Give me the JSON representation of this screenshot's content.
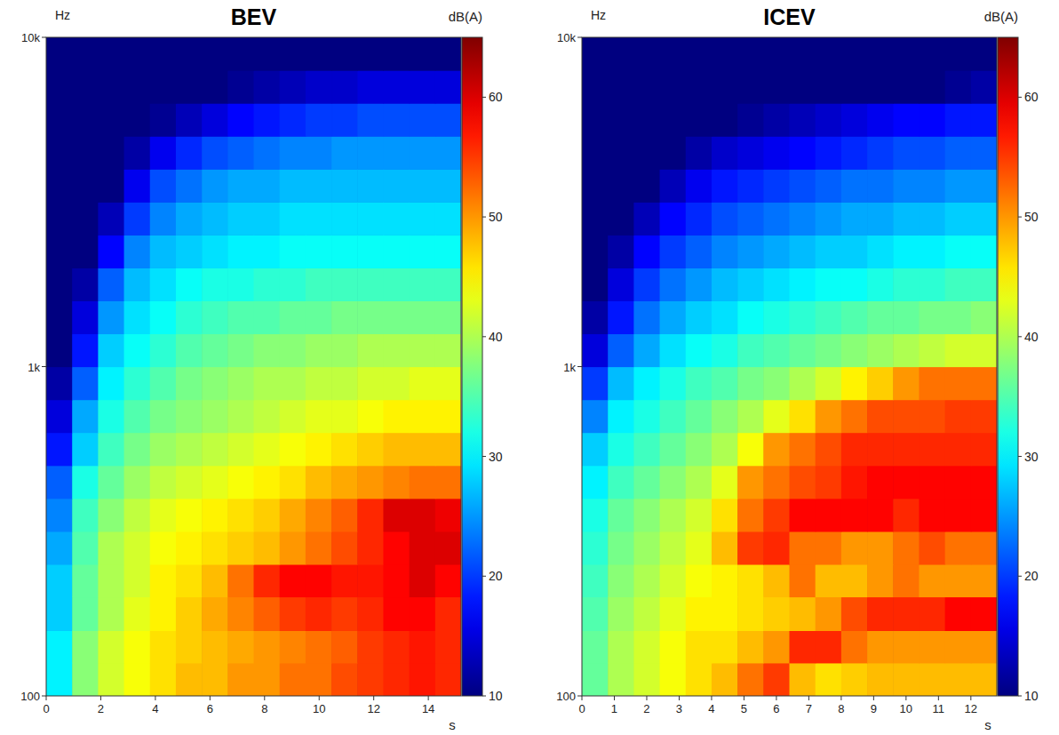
{
  "chart_data": [
    {
      "type": "heatmap",
      "title": "BEV",
      "x_label": "s",
      "y_label": "Hz",
      "colorbar_label": "dB(A)",
      "log": "y",
      "xlim": [
        0,
        15.2
      ],
      "xticks": [
        0,
        2,
        4,
        6,
        8,
        10,
        12,
        14
      ],
      "ylim": [
        100,
        10000
      ],
      "yticks": [
        100,
        {
          "value": 1000,
          "label": "1k"
        },
        {
          "value": 10000,
          "label": "10k"
        }
      ],
      "color_range": [
        10,
        65
      ],
      "color_ticks": [
        10,
        20,
        30,
        40,
        50,
        60
      ],
      "x_bins": [
        0,
        0.95,
        1.9,
        2.85,
        3.8,
        4.75,
        5.7,
        6.65,
        7.6,
        8.55,
        9.5,
        10.45,
        11.4,
        12.35,
        13.3,
        14.25,
        15.2
      ],
      "y_bins": [
        100,
        126,
        158,
        200,
        251,
        316,
        398,
        501,
        631,
        794,
        1000,
        1259,
        1585,
        1995,
        2512,
        3162,
        3981,
        5012,
        6310,
        7943,
        10000
      ],
      "cells": [
        [
          30,
          38,
          42,
          44,
          46,
          48,
          48,
          50,
          50,
          52,
          52,
          54,
          55,
          56,
          57,
          56
        ],
        [
          30,
          38,
          42,
          44,
          46,
          47,
          48,
          49,
          50,
          51,
          52,
          53,
          55,
          56,
          57,
          56
        ],
        [
          28,
          36,
          40,
          43,
          45,
          47,
          49,
          51,
          53,
          55,
          56,
          55,
          56,
          58,
          58,
          56
        ],
        [
          28,
          36,
          40,
          42,
          45,
          46,
          48,
          52,
          56,
          58,
          58,
          57,
          57,
          58,
          60,
          58
        ],
        [
          26,
          35,
          40,
          42,
          44,
          45,
          46,
          47,
          48,
          50,
          52,
          54,
          56,
          58,
          60,
          60
        ],
        [
          24,
          34,
          38,
          41,
          43,
          44,
          45,
          46,
          47,
          49,
          51,
          53,
          56,
          60,
          60,
          59
        ],
        [
          22,
          32,
          36,
          39,
          41,
          42,
          43,
          44,
          45,
          46,
          48,
          49,
          50,
          51,
          52,
          52
        ],
        [
          18,
          28,
          34,
          37,
          39,
          40,
          41,
          42,
          43,
          44,
          45,
          46,
          47,
          48,
          48,
          48
        ],
        [
          15,
          26,
          32,
          35,
          37,
          38,
          39,
          40,
          41,
          42,
          43,
          43,
          44,
          45,
          45,
          45
        ],
        [
          12,
          22,
          30,
          33,
          35,
          37,
          38,
          39,
          40,
          40,
          41,
          41,
          42,
          42,
          43,
          43
        ],
        [
          10,
          18,
          28,
          31,
          33,
          35,
          36,
          37,
          38,
          38,
          39,
          39,
          40,
          40,
          40,
          40
        ],
        [
          10,
          15,
          25,
          29,
          31,
          33,
          34,
          35,
          35,
          36,
          36,
          37,
          37,
          37,
          37,
          37
        ],
        [
          10,
          12,
          22,
          27,
          29,
          31,
          32,
          32,
          33,
          33,
          34,
          34,
          34,
          34,
          34,
          34
        ],
        [
          10,
          10,
          17,
          24,
          27,
          28,
          29,
          30,
          30,
          31,
          31,
          31,
          31,
          31,
          31,
          31
        ],
        [
          10,
          10,
          13,
          20,
          24,
          26,
          27,
          28,
          28,
          29,
          29,
          29,
          29,
          29,
          29,
          29
        ],
        [
          10,
          10,
          10,
          16,
          21,
          23,
          25,
          26,
          26,
          27,
          27,
          27,
          27,
          27,
          27,
          27
        ],
        [
          10,
          10,
          10,
          12,
          16,
          19,
          21,
          22,
          23,
          24,
          24,
          25,
          25,
          25,
          25,
          25
        ],
        [
          10,
          10,
          10,
          10,
          11,
          13,
          15,
          17,
          18,
          19,
          20,
          20,
          21,
          21,
          21,
          21
        ],
        [
          10,
          10,
          10,
          10,
          10,
          10,
          10,
          11,
          12,
          13,
          14,
          14,
          15,
          15,
          15,
          15
        ],
        [
          10,
          10,
          10,
          10,
          10,
          10,
          10,
          10,
          10,
          10,
          10,
          10,
          10,
          10,
          10,
          10
        ]
      ]
    },
    {
      "type": "heatmap",
      "title": "ICEV",
      "x_label": "s",
      "y_label": "Hz",
      "colorbar_label": "dB(A)",
      "log": "y",
      "xlim": [
        0,
        12.8
      ],
      "xticks": [
        0,
        1,
        2,
        3,
        4,
        5,
        6,
        7,
        8,
        9,
        10,
        11,
        12
      ],
      "ylim": [
        100,
        10000
      ],
      "yticks": [
        100,
        {
          "value": 1000,
          "label": "1k"
        },
        {
          "value": 10000,
          "label": "10k"
        }
      ],
      "color_range": [
        10,
        65
      ],
      "color_ticks": [
        10,
        20,
        30,
        40,
        50,
        60
      ],
      "x_bins": [
        0,
        0.8,
        1.6,
        2.4,
        3.2,
        4,
        4.8,
        5.6,
        6.4,
        7.2,
        8,
        8.8,
        9.6,
        10.4,
        11.2,
        12,
        12.8
      ],
      "y_bins": [
        100,
        126,
        158,
        200,
        251,
        316,
        398,
        501,
        631,
        794,
        1000,
        1259,
        1585,
        1995,
        2512,
        3162,
        3981,
        5012,
        6310,
        7943,
        10000
      ],
      "cells": [
        [
          36,
          40,
          42,
          44,
          46,
          48,
          52,
          55,
          48,
          46,
          47,
          48,
          48,
          48,
          48,
          48
        ],
        [
          36,
          40,
          42,
          44,
          46,
          46,
          48,
          50,
          56,
          56,
          52,
          50,
          50,
          50,
          50,
          50
        ],
        [
          35,
          39,
          41,
          43,
          45,
          45,
          46,
          47,
          48,
          50,
          54,
          56,
          56,
          56,
          58,
          58
        ],
        [
          34,
          38,
          40,
          42,
          44,
          45,
          46,
          48,
          52,
          48,
          48,
          50,
          52,
          50,
          50,
          50
        ],
        [
          33,
          37,
          39,
          41,
          43,
          48,
          55,
          56,
          52,
          52,
          50,
          50,
          52,
          54,
          52,
          52
        ],
        [
          32,
          36,
          38,
          40,
          42,
          46,
          52,
          55,
          58,
          58,
          58,
          58,
          56,
          58,
          58,
          58
        ],
        [
          30,
          34,
          36,
          38,
          40,
          43,
          50,
          52,
          54,
          55,
          57,
          58,
          58,
          58,
          58,
          58
        ],
        [
          28,
          32,
          34,
          36,
          38,
          40,
          44,
          50,
          52,
          54,
          56,
          56,
          56,
          56,
          56,
          56
        ],
        [
          24,
          30,
          32,
          34,
          36,
          38,
          40,
          43,
          46,
          50,
          52,
          54,
          54,
          54,
          55,
          55
        ],
        [
          20,
          27,
          30,
          32,
          34,
          35,
          37,
          38,
          40,
          42,
          45,
          47,
          50,
          52,
          52,
          52
        ],
        [
          15,
          22,
          26,
          29,
          31,
          32,
          34,
          35,
          36,
          37,
          38,
          39,
          40,
          41,
          42,
          42
        ],
        [
          12,
          18,
          23,
          26,
          28,
          29,
          31,
          32,
          33,
          34,
          35,
          36,
          36,
          37,
          37,
          38
        ],
        [
          10,
          15,
          20,
          23,
          25,
          27,
          28,
          29,
          30,
          31,
          31,
          32,
          33,
          33,
          34,
          34
        ],
        [
          10,
          12,
          17,
          20,
          22,
          24,
          25,
          26,
          27,
          28,
          28,
          29,
          30,
          30,
          31,
          31
        ],
        [
          10,
          10,
          13,
          17,
          19,
          21,
          22,
          23,
          24,
          25,
          26,
          26,
          27,
          27,
          28,
          28
        ],
        [
          10,
          10,
          10,
          13,
          16,
          18,
          19,
          20,
          21,
          22,
          23,
          23,
          24,
          24,
          25,
          25
        ],
        [
          10,
          10,
          10,
          10,
          12,
          14,
          15,
          16,
          17,
          18,
          19,
          20,
          21,
          21,
          22,
          22
        ],
        [
          10,
          10,
          10,
          10,
          10,
          10,
          11,
          12,
          13,
          14,
          15,
          16,
          17,
          17,
          18,
          18
        ],
        [
          10,
          10,
          10,
          10,
          10,
          10,
          10,
          10,
          10,
          10,
          10,
          10,
          10,
          10,
          11,
          12
        ],
        [
          10,
          10,
          10,
          10,
          10,
          10,
          10,
          10,
          10,
          10,
          10,
          10,
          10,
          10,
          10,
          10
        ]
      ]
    }
  ]
}
